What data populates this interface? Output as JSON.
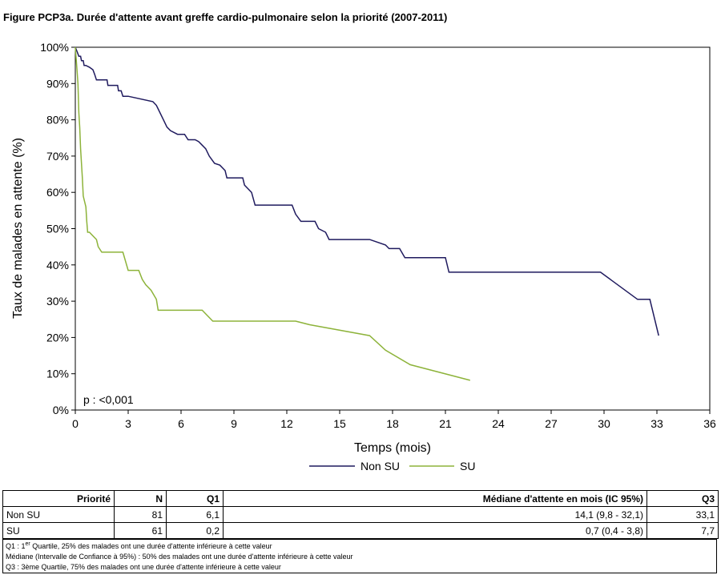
{
  "figure_title": "Figure PCP3a. Durée d'attente avant greffe cardio-pulmonaire selon la priorité (2007-2011)",
  "chart_data": {
    "type": "line",
    "step": true,
    "xlabel": "Temps (mois)",
    "ylabel": "Taux de malades en attente (%)",
    "xlim": [
      0,
      36
    ],
    "ylim": [
      0,
      100
    ],
    "xticks": [
      0,
      3,
      6,
      9,
      12,
      15,
      18,
      21,
      24,
      27,
      30,
      33,
      36
    ],
    "xtick_labels": [
      "0",
      "3",
      "6",
      "9",
      "12",
      "15",
      "18",
      "21",
      "24",
      "27",
      "30",
      "33",
      "36"
    ],
    "yticks": [
      0,
      10,
      20,
      30,
      40,
      50,
      60,
      70,
      80,
      90,
      100
    ],
    "ytick_labels": [
      "0%",
      "10%",
      "20%",
      "30%",
      "40%",
      "50%",
      "60%",
      "70%",
      "80%",
      "90%",
      "100%"
    ],
    "grid": false,
    "legend_position": "bottom",
    "annotation": "p : <0,001",
    "series": [
      {
        "name": "Non SU",
        "color": "#1f1a5e",
        "x": [
          0,
          0.1,
          0.2,
          0.3,
          0.35,
          0.45,
          0.5,
          0.6,
          0.8,
          1.0,
          1.1,
          1.2,
          1.8,
          1.85,
          2.4,
          2.45,
          2.6,
          2.7,
          3.0,
          4.4,
          4.6,
          4.7,
          4.9,
          5.0,
          5.2,
          5.4,
          5.8,
          6.2,
          6.4,
          6.8,
          7.0,
          7.2,
          7.4,
          7.6,
          7.9,
          8.2,
          8.5,
          8.6,
          9.5,
          9.6,
          10.0,
          10.2,
          12.3,
          12.5,
          12.8,
          13.6,
          13.8,
          14.2,
          14.4,
          16.7,
          17.6,
          17.8,
          18.4,
          18.7,
          21.0,
          21.2,
          29.8,
          31.9,
          32.6,
          33.1
        ],
        "y": [
          100,
          98.8,
          97.5,
          97.5,
          96.3,
          96.3,
          95.0,
          95.0,
          94.5,
          93.8,
          92.5,
          91.0,
          91.0,
          89.5,
          89.5,
          88.0,
          88.0,
          86.5,
          86.5,
          85.0,
          84.0,
          83.0,
          81.0,
          80.0,
          78.0,
          77.0,
          76.0,
          76.0,
          74.5,
          74.5,
          74.0,
          73.0,
          72.0,
          70.0,
          68.0,
          67.5,
          66.0,
          64.0,
          64.0,
          62.0,
          60.0,
          56.5,
          56.5,
          54.0,
          52.0,
          52.0,
          50.0,
          49.0,
          47.0,
          47.0,
          45.5,
          44.5,
          44.5,
          42.0,
          42.0,
          38.0,
          38.0,
          30.5,
          30.5,
          20.5
        ]
      },
      {
        "name": "SU",
        "color": "#8db33a",
        "x": [
          0,
          0.1,
          0.15,
          0.2,
          0.25,
          0.3,
          0.35,
          0.4,
          0.45,
          0.5,
          0.6,
          0.65,
          0.7,
          0.8,
          1.2,
          1.3,
          1.5,
          2.7,
          3.0,
          3.6,
          3.8,
          4.0,
          4.3,
          4.6,
          4.7,
          7.2,
          7.8,
          12.5,
          13.3,
          16.7,
          17.6,
          19.0,
          22.4
        ],
        "y": [
          100,
          93.5,
          90.0,
          82.0,
          78.0,
          72.0,
          68.0,
          64.0,
          59.0,
          58.0,
          56.0,
          52.0,
          49.0,
          49.0,
          47.0,
          45.0,
          43.5,
          43.5,
          38.5,
          38.5,
          36.0,
          34.5,
          33.0,
          30.5,
          27.5,
          27.5,
          24.5,
          24.5,
          23.5,
          20.5,
          16.5,
          12.5,
          8.2
        ]
      }
    ]
  },
  "table": {
    "headers": [
      "Priorité",
      "N",
      "Q1",
      "Médiane d'attente en mois (IC 95%)",
      "Q3"
    ],
    "rows": [
      [
        "Non SU",
        "81",
        "6,1",
        "14,1 (9,8 - 32,1)",
        "33,1"
      ],
      [
        "SU",
        "61",
        "0,2",
        "0,7 (0,4 - 3,8)",
        "7,7"
      ]
    ]
  },
  "notes": {
    "q1_prefix": "Q1 : 1",
    "q1_sup": "er",
    "q1_suffix": " Quartile, 25% des malades ont une durée d'attente inférieure à cette valeur",
    "median": "Médiane (Intervalle de Confiance à 95%) : 50% des malades ont une durée d'attente inférieure à cette valeur",
    "q3": "Q3 : 3ème Quartile, 75% des malades ont une durée d'attente inférieure à cette valeur"
  }
}
